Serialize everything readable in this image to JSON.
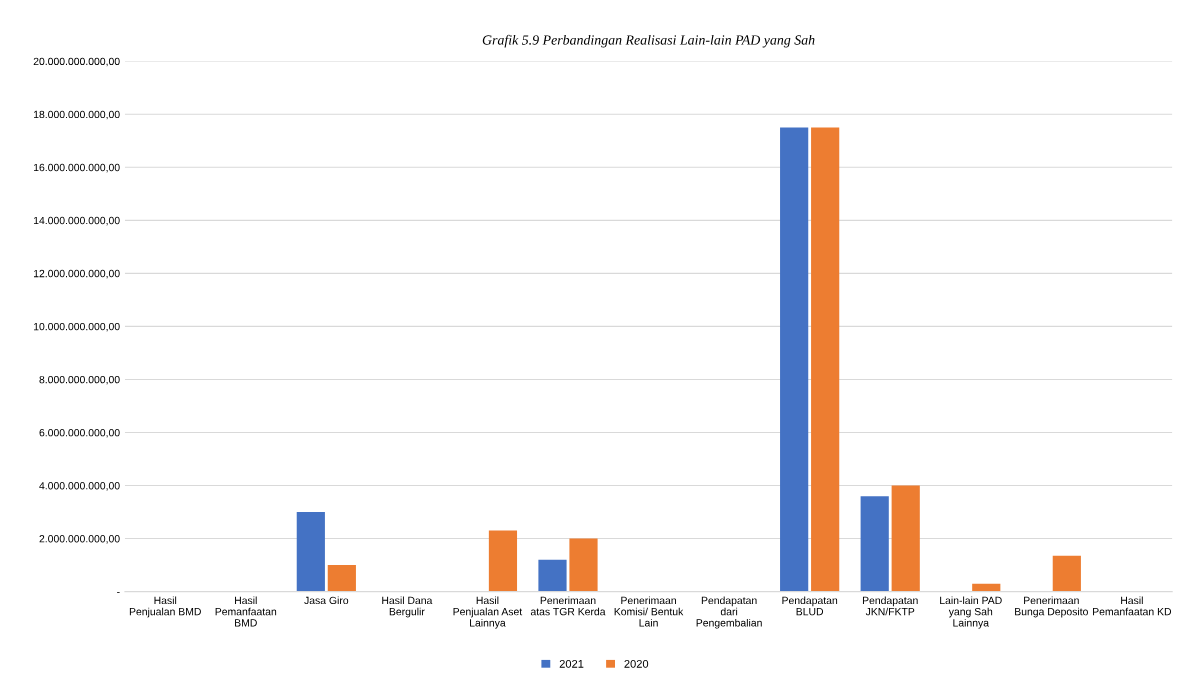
{
  "chart_data": {
    "type": "bar",
    "title": "Grafik 5.9 Perbandingan Realisasi Lain-lain PAD yang Sah",
    "categories": [
      "Hasil Penjualan BMD",
      "Hasil Pemanfaatan BMD",
      "Jasa Giro",
      "Hasil Dana Bergulir",
      "Hasil Penjualan Aset Lainnya",
      "Penerimaan atas TGR Kerda",
      "Penerimaan Komisi/ Bentuk Lain",
      "Pendapatan dari Pengembalian",
      "Pendapatan BLUD",
      "Pendapatan JKN/FKTP",
      "Lain-lain PAD yang Sah Lainnya",
      "Penerimaan Bunga Deposito",
      "Hasil Pemanfaatan KD"
    ],
    "series": [
      {
        "name": "2021",
        "color": "#4472c4",
        "values": [
          0,
          0,
          3000000000,
          0,
          0,
          1200000000,
          0,
          0,
          17500000000,
          3600000000,
          0,
          0,
          0
        ]
      },
      {
        "name": "2020",
        "color": "#ed7d31",
        "values": [
          0,
          0,
          1000000000,
          0,
          2300000000,
          2000000000,
          0,
          0,
          17500000000,
          4000000000,
          300000000,
          1350000000,
          0
        ]
      }
    ],
    "ylim": [
      0,
      20000000000
    ],
    "yticks": [
      {
        "value": 0,
        "label": "-"
      },
      {
        "value": 2000000000,
        "label": "2.000.000.000,00"
      },
      {
        "value": 4000000000,
        "label": "4.000.000.000,00"
      },
      {
        "value": 6000000000,
        "label": "6.000.000.000,00"
      },
      {
        "value": 8000000000,
        "label": "8.000.000.000,00"
      },
      {
        "value": 10000000000,
        "label": "10.000.000.000,00"
      },
      {
        "value": 12000000000,
        "label": "12.000.000.000,00"
      },
      {
        "value": 14000000000,
        "label": "14.000.000.000,00"
      },
      {
        "value": 16000000000,
        "label": "16.000.000.000,00"
      },
      {
        "value": 18000000000,
        "label": "18.000.000.000,00"
      },
      {
        "value": 20000000000,
        "label": "20.000.000.000,00"
      }
    ],
    "grid": "y",
    "legend": "bottom"
  }
}
